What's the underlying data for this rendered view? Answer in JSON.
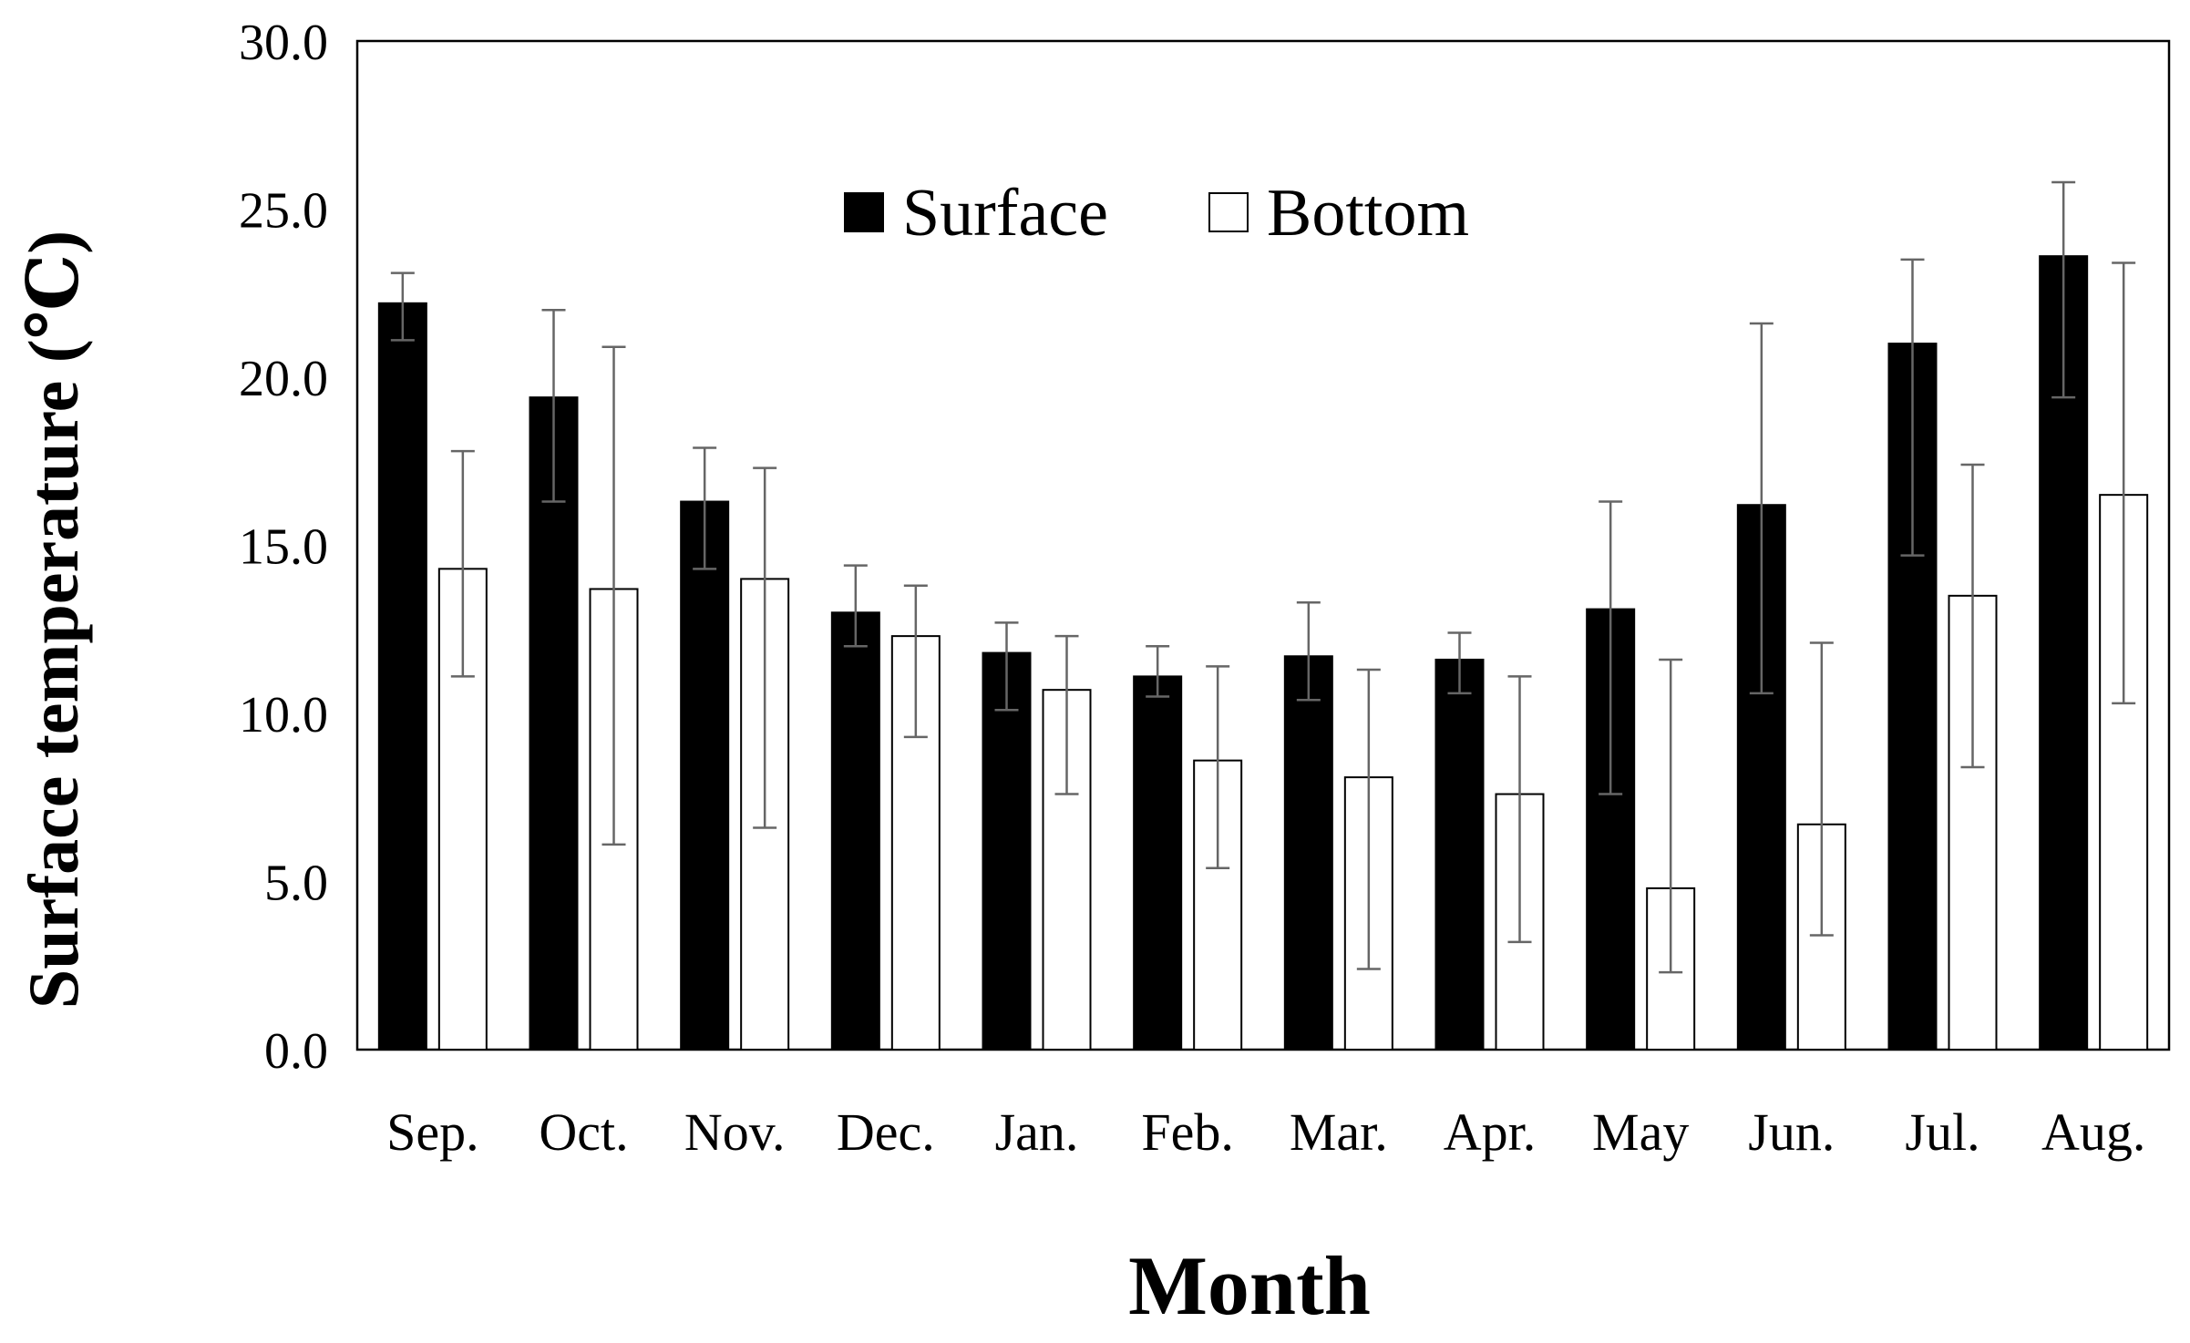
{
  "chart_data": {
    "type": "bar",
    "title": "",
    "xlabel": "Month",
    "ylabel": "Surface temperature (℃)",
    "ylim": [
      0,
      30
    ],
    "yticks": [
      "0.0",
      "5.0",
      "10.0",
      "15.0",
      "20.0",
      "25.0",
      "30.0"
    ],
    "grid": false,
    "legend_position": "top-center",
    "categories": [
      "Sep.",
      "Oct.",
      "Nov.",
      "Dec.",
      "Jan.",
      "Feb.",
      "Mar.",
      "Apr.",
      "May",
      "Jun.",
      "Jul.",
      "Aug."
    ],
    "series": [
      {
        "name": "Surface",
        "fill": "#000000",
        "values": [
          22.2,
          19.4,
          16.3,
          13.0,
          11.8,
          11.1,
          11.7,
          11.6,
          13.1,
          16.2,
          21.0,
          23.6
        ],
        "error_low": [
          21.1,
          16.3,
          14.3,
          12.0,
          10.1,
          10.5,
          10.4,
          10.6,
          7.6,
          10.6,
          14.7,
          19.4
        ],
        "error_high": [
          23.1,
          22.0,
          17.9,
          14.4,
          12.7,
          12.0,
          13.3,
          12.4,
          16.3,
          21.6,
          23.5,
          25.8
        ]
      },
      {
        "name": "Bottom",
        "fill": "#ffffff",
        "values": [
          14.3,
          13.7,
          14.0,
          12.3,
          10.7,
          8.6,
          8.1,
          7.6,
          4.8,
          6.7,
          13.5,
          16.5
        ],
        "error_low": [
          11.1,
          6.1,
          6.6,
          9.3,
          7.6,
          5.4,
          2.4,
          3.2,
          2.3,
          3.4,
          8.4,
          10.3
        ],
        "error_high": [
          17.8,
          20.9,
          17.3,
          13.8,
          12.3,
          11.4,
          11.3,
          11.1,
          11.6,
          12.1,
          17.4,
          23.4
        ]
      }
    ]
  }
}
